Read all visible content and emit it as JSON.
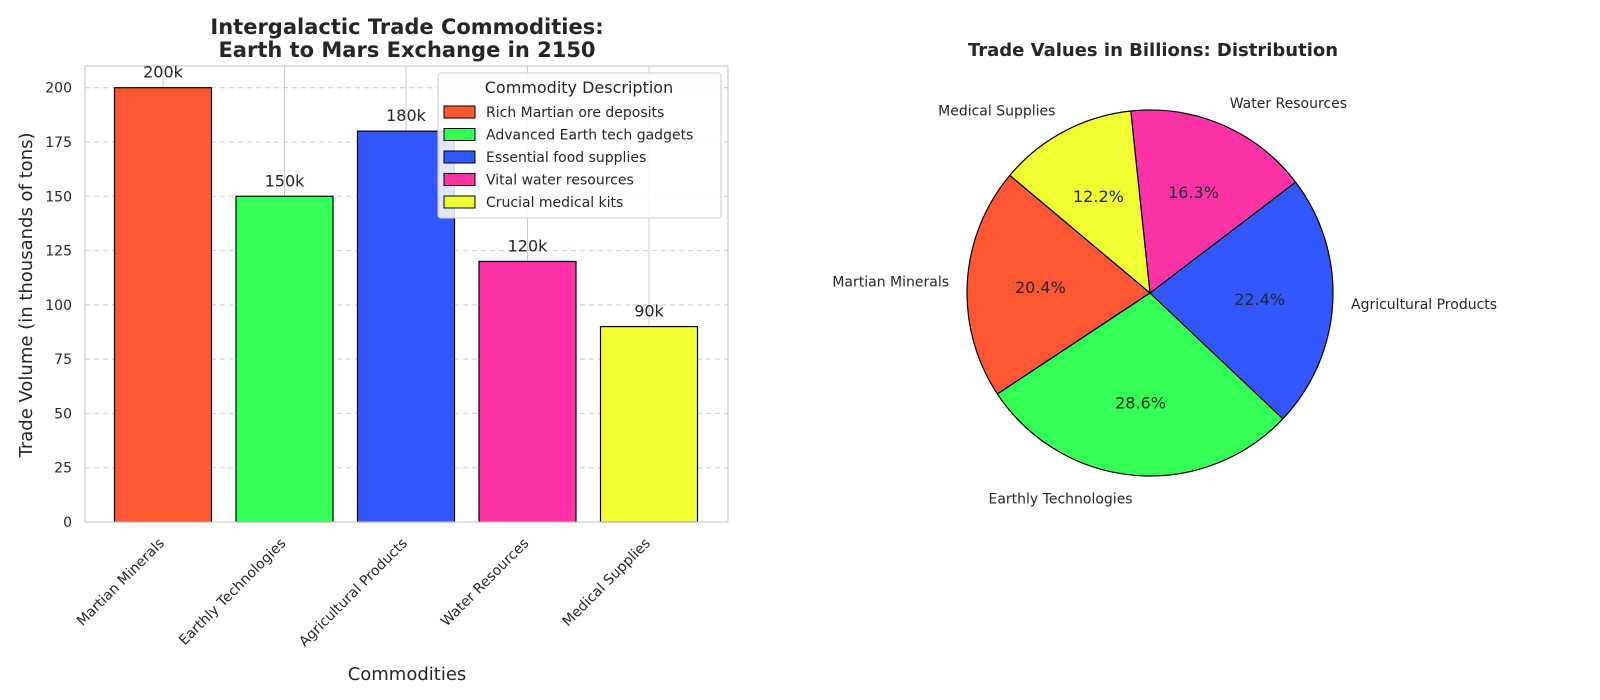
{
  "chart_data": [
    {
      "type": "bar",
      "title": [
        "Intergalactic Trade Commodities:",
        "Earth to Mars Exchange in 2150"
      ],
      "xlabel": "Commodities",
      "ylabel": "Trade Volume (in thousands of tons)",
      "ylim": [
        0,
        210
      ],
      "yticks": [
        0,
        25,
        50,
        75,
        100,
        125,
        150,
        175,
        200
      ],
      "grid": "y dashed",
      "categories": [
        "Martian Minerals",
        "Earthly Technologies",
        "Agricultural Products",
        "Water Resources",
        "Medical Supplies"
      ],
      "values": [
        200,
        150,
        180,
        120,
        90
      ],
      "data_labels": [
        "200k",
        "150k",
        "180k",
        "120k",
        "90k"
      ],
      "colors": [
        "#ff5733",
        "#33ff57",
        "#3357ff",
        "#ff33a8",
        "#f0ff33"
      ],
      "legend": {
        "title": "Commodity Description",
        "placement": "top-right",
        "entries": [
          "Rich Martian ore deposits",
          "Advanced Earth tech gadgets",
          "Essential food supplies",
          "Vital water resources",
          "Crucial medical kits"
        ]
      }
    },
    {
      "type": "pie",
      "title": "Trade Values in Billions: Distribution",
      "start_angle_deg": 140,
      "direction": "counterclockwise",
      "slices": [
        {
          "label": "Martian Minerals",
          "value": 20.4,
          "pct_label": "20.4%",
          "color": "#ff5733"
        },
        {
          "label": "Earthly Technologies",
          "value": 28.6,
          "pct_label": "28.6%",
          "color": "#33ff57"
        },
        {
          "label": "Agricultural Products",
          "value": 22.4,
          "pct_label": "22.4%",
          "color": "#3357ff"
        },
        {
          "label": "Water Resources",
          "value": 16.3,
          "pct_label": "16.3%",
          "color": "#ff33a8"
        },
        {
          "label": "Medical Supplies",
          "value": 12.2,
          "pct_label": "12.2%",
          "color": "#f0ff33"
        }
      ]
    }
  ]
}
